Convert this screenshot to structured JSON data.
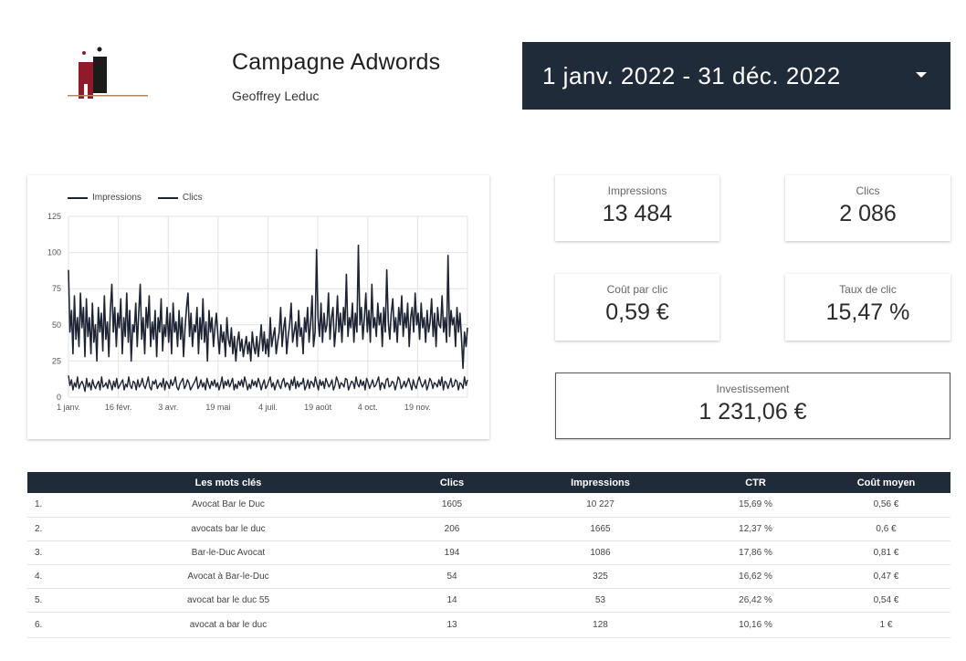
{
  "header": {
    "title": "Campagne Adwords",
    "subtitle": "Geoffrey Leduc",
    "date_range": "1 janv. 2022 - 31 déc. 2022"
  },
  "colors": {
    "accent_dark": "#202b3a",
    "logo_red": "#8f1b2a",
    "logo_black": "#1b1b1b",
    "logo_line": "#b08a5e",
    "series_line": "#1d2433"
  },
  "kpis": {
    "impressions": {
      "label": "Impressions",
      "value": "13 484"
    },
    "clics": {
      "label": "Clics",
      "value": "2 086"
    },
    "cpc": {
      "label": "Coût par clic",
      "value": "0,59 €"
    },
    "ctr": {
      "label": "Taux de clic",
      "value": "15,47 %"
    },
    "investissement": {
      "label": "Investissement",
      "value": "1 231,06 €"
    }
  },
  "table": {
    "headers": [
      "Les mots clés",
      "Clics",
      "Impressions",
      "CTR",
      "Coût moyen"
    ],
    "rows": [
      {
        "idx": "1.",
        "keyword": "Avocat Bar le Duc",
        "clics": "1605",
        "impressions": "10 227",
        "ctr": "15,69 %",
        "cout": "0,56 €"
      },
      {
        "idx": "2.",
        "keyword": "avocats bar le duc",
        "clics": "206",
        "impressions": "1665",
        "ctr": "12,37 %",
        "cout": "0,6 €"
      },
      {
        "idx": "3.",
        "keyword": "Bar-le-Duc Avocat",
        "clics": "194",
        "impressions": "1086",
        "ctr": "17,86 %",
        "cout": "0,81 €"
      },
      {
        "idx": "4.",
        "keyword": "Avocat à Bar-le-Duc",
        "clics": "54",
        "impressions": "325",
        "ctr": "16,62 %",
        "cout": "0,47 €"
      },
      {
        "idx": "5.",
        "keyword": "avocat bar le duc 55",
        "clics": "14",
        "impressions": "53",
        "ctr": "26,42 %",
        "cout": "0,54 €"
      },
      {
        "idx": "6.",
        "keyword": "avocat a bar le duc",
        "clics": "13",
        "impressions": "128",
        "ctr": "10,16 %",
        "cout": "1 €"
      }
    ]
  },
  "chart_data": {
    "type": "line",
    "legend": [
      "Impressions",
      "Clics"
    ],
    "legend_position": "top-left",
    "grid": true,
    "ylim": [
      0,
      125
    ],
    "yticks": [
      "0",
      "25",
      "50",
      "75",
      "100",
      "125"
    ],
    "xticks": [
      "1 janv.",
      "16 févr.",
      "3 avr.",
      "19 mai",
      "4 juil.",
      "19 août",
      "4 oct.",
      "19 nov."
    ],
    "x_start": "2022-01-01",
    "series": [
      {
        "name": "Impressions",
        "values": [
          88,
          45,
          60,
          30,
          70,
          40,
          55,
          35,
          72,
          48,
          62,
          28,
          68,
          42,
          55,
          30,
          65,
          38,
          50,
          25,
          62,
          45,
          58,
          32,
          70,
          40,
          52,
          28,
          60,
          78,
          45,
          62,
          35,
          58,
          48,
          68,
          30,
          55,
          42,
          72,
          38,
          60,
          25,
          50,
          45,
          65,
          35,
          58,
          78,
          40,
          55,
          30,
          62,
          48,
          70,
          35,
          52,
          40,
          60,
          28,
          55,
          45,
          68,
          32,
          50,
          42,
          62,
          38,
          58,
          30,
          65,
          45,
          52,
          35,
          60,
          40,
          55,
          28,
          48,
          62,
          72,
          42,
          58,
          35,
          50,
          45,
          62,
          30,
          55,
          40,
          68,
          38,
          52,
          25,
          60,
          45,
          55,
          35,
          48,
          58,
          42,
          30,
          50,
          38,
          45,
          28,
          55,
          40,
          35,
          48,
          30,
          42,
          25,
          38,
          45,
          32,
          40,
          28,
          35,
          42,
          30,
          38,
          25,
          45,
          35,
          30,
          42,
          28,
          38,
          50,
          32,
          45,
          30,
          40,
          28,
          55,
          35,
          42,
          48,
          30,
          38,
          45,
          62,
          35,
          48,
          55,
          30,
          42,
          50,
          65,
          38,
          45,
          52,
          35,
          60,
          42,
          48,
          30,
          55,
          45,
          62,
          38,
          50,
          70,
          35,
          45,
          102,
          55,
          42,
          65,
          38,
          58,
          45,
          50,
          72,
          40,
          55,
          62,
          35,
          48,
          70,
          45,
          58,
          38,
          62,
          50,
          85,
          42,
          55,
          48,
          65,
          38,
          58,
          45,
          105,
          50,
          62,
          40,
          55,
          72,
          45,
          60,
          38,
          78,
          48,
          55,
          42,
          65,
          50,
          58,
          35,
          62,
          45,
          88,
          52,
          40,
          58,
          68,
          45,
          55,
          38,
          62,
          50,
          70,
          42,
          58,
          48,
          65,
          35,
          55,
          62,
          45,
          72,
          50,
          58,
          40,
          65,
          48,
          55,
          38,
          60,
          45,
          52,
          68,
          42,
          58,
          35,
          62,
          50,
          48,
          70,
          45,
          55,
          38,
          98,
          42,
          60,
          50,
          55,
          35,
          62,
          45,
          58,
          40,
          20,
          45,
          35,
          48
        ]
      },
      {
        "name": "Clics",
        "values": [
          15,
          8,
          12,
          5,
          10,
          7,
          14,
          6,
          9,
          11,
          8,
          4,
          13,
          7,
          10,
          5,
          12,
          8,
          6,
          9,
          11,
          5,
          14,
          7,
          8,
          10,
          6,
          12,
          9,
          5,
          11,
          7,
          13,
          6,
          8,
          10,
          12,
          5,
          9,
          7,
          14,
          8,
          6,
          11,
          10,
          5,
          12,
          7,
          9,
          13,
          8,
          6,
          10,
          14,
          7,
          5,
          11,
          9,
          12,
          6,
          8,
          10,
          7,
          13,
          5,
          11,
          9,
          6,
          12,
          8,
          10,
          14,
          7,
          5,
          9,
          11,
          13,
          6,
          8,
          12,
          10,
          5,
          7,
          9,
          11,
          14,
          6,
          8,
          12,
          7,
          10,
          5,
          13,
          9,
          6,
          11,
          8,
          12,
          7,
          10,
          5,
          9,
          14,
          6,
          11,
          8,
          12,
          7,
          10,
          13,
          5,
          9,
          6,
          11,
          8,
          12,
          7,
          14,
          10,
          5,
          9,
          6,
          12,
          8,
          11,
          7,
          13,
          10,
          5,
          9,
          12,
          6,
          8,
          11,
          14,
          7,
          10,
          5,
          9,
          12,
          8,
          6,
          11,
          13,
          7,
          10,
          9,
          5,
          12,
          8,
          14,
          6,
          11,
          7,
          10,
          9,
          13,
          5,
          8,
          12,
          6,
          11,
          10,
          7,
          14,
          9,
          5,
          12,
          8,
          11,
          6,
          13,
          10,
          7,
          9,
          12,
          5,
          8,
          14,
          11,
          6,
          10,
          9,
          7,
          13,
          12,
          5,
          8,
          11,
          10,
          6,
          14,
          9,
          7,
          12,
          8,
          11,
          5,
          13,
          10,
          6,
          9,
          12,
          7,
          8,
          11,
          14,
          5,
          10,
          9,
          6,
          12,
          13,
          7,
          8,
          11,
          10,
          5,
          9,
          14,
          12,
          6,
          8,
          11,
          7,
          10,
          13,
          9,
          5,
          12,
          8,
          6,
          11,
          14,
          10,
          7,
          9,
          12,
          5,
          8,
          13,
          11,
          6,
          10,
          9,
          7,
          12,
          8,
          14,
          5,
          11,
          10,
          6,
          9,
          13,
          7,
          8,
          12,
          11,
          5,
          10,
          9,
          6,
          14,
          8,
          12
        ]
      }
    ]
  }
}
